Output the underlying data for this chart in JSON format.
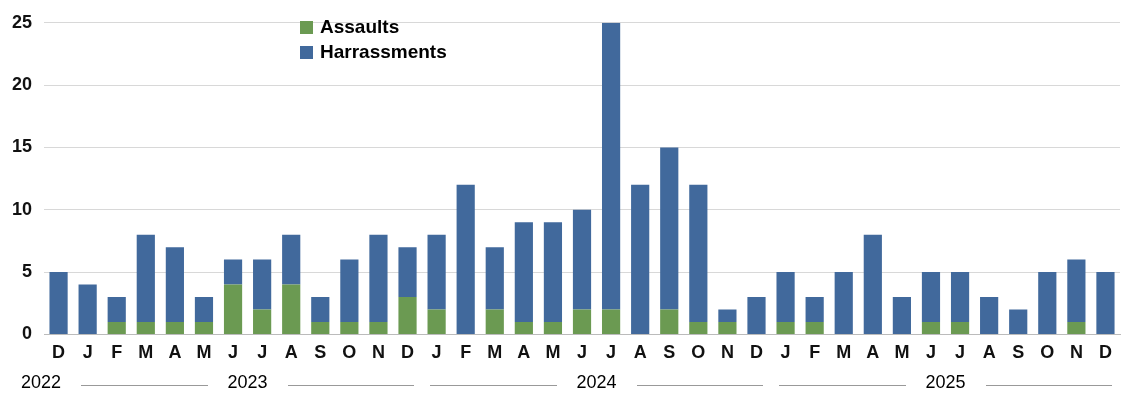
{
  "chart_data": {
    "type": "bar",
    "stacked": true,
    "categories": [
      "D",
      "J",
      "F",
      "M",
      "A",
      "M",
      "J",
      "J",
      "A",
      "S",
      "O",
      "N",
      "D",
      "J",
      "F",
      "M",
      "A",
      "M",
      "J",
      "J",
      "A",
      "S",
      "O",
      "N",
      "D",
      "J",
      "F",
      "M",
      "A",
      "M",
      "J",
      "J",
      "A",
      "S",
      "O",
      "N",
      "D"
    ],
    "series": [
      {
        "name": "Assaults",
        "color": "#6b9a52",
        "values": [
          0,
          0,
          1,
          1,
          1,
          1,
          4,
          2,
          4,
          1,
          1,
          1,
          3,
          2,
          0,
          2,
          1,
          1,
          2,
          2,
          0,
          2,
          1,
          1,
          0,
          1,
          1,
          0,
          0,
          0,
          1,
          1,
          0,
          0,
          0,
          1,
          0
        ]
      },
      {
        "name": "Harrassments",
        "color": "#41699c",
        "values": [
          5,
          4,
          2,
          7,
          6,
          2,
          2,
          4,
          4,
          2,
          5,
          7,
          4,
          6,
          12,
          5,
          8,
          8,
          8,
          23,
          12,
          13,
          11,
          1,
          3,
          4,
          2,
          5,
          8,
          3,
          4,
          4,
          3,
          2,
          5,
          5,
          5
        ]
      }
    ],
    "ylim": [
      0,
      25
    ],
    "yticks": [
      0,
      5,
      10,
      15,
      20,
      25
    ],
    "grid": "y",
    "legend": "top left",
    "annotations": [
      "2022",
      "2023",
      "2024",
      "2025"
    ]
  }
}
